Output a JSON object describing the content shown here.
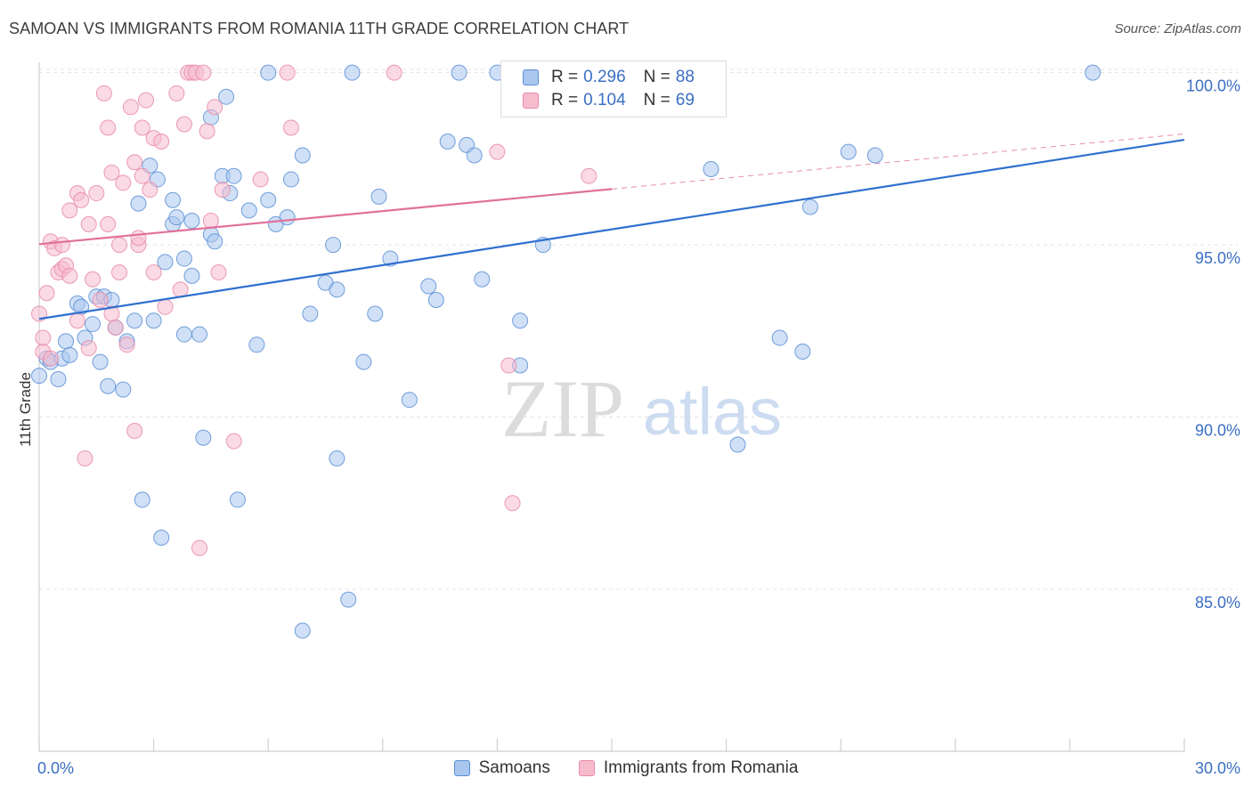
{
  "header": {
    "title": "SAMOAN VS IMMIGRANTS FROM ROMANIA 11TH GRADE CORRELATION CHART",
    "source": "Source: ZipAtlas.com"
  },
  "watermark": {
    "zip": "ZIP",
    "atlas": "atlas"
  },
  "legend_top": [
    {
      "r_label": "R =",
      "r_value": "0.296",
      "n_label": "N =",
      "n_value": "88"
    },
    {
      "r_label": "R =",
      "r_value": "0.104",
      "n_label": "N =",
      "n_value": "69"
    }
  ],
  "legend_bottom": [
    "Samoans",
    "Immigrants from Romania"
  ],
  "colors": {
    "blue_fill": "#a9c6ef",
    "blue_stroke": "#5b8fd6",
    "blue_line": "#2f6fcf",
    "pink_fill": "#f6bccd",
    "pink_stroke": "#e889a8",
    "pink_line": "#e0719a",
    "grid": "#e4e4e4",
    "tick_label": "#3b6fc4"
  },
  "chart_data": {
    "type": "scatter",
    "title": "SAMOAN VS IMMIGRANTS FROM ROMANIA 11TH GRADE CORRELATION CHART",
    "xlabel": "",
    "ylabel": "11th Grade",
    "xlim": [
      0,
      30
    ],
    "ylim": [
      80.4,
      100.3
    ],
    "x_tick_labels": [
      "0.0%",
      "30.0%"
    ],
    "y_ticks": [
      85,
      90,
      95,
      100
    ],
    "y_tick_labels": [
      "85.0%",
      "90.0%",
      "95.0%",
      "100.0%"
    ],
    "grid": true,
    "series": [
      {
        "name": "Samoans",
        "r": 0.296,
        "n": 88,
        "trend": {
          "x": [
            0,
            30
          ],
          "y": [
            92.85,
            98.05
          ]
        },
        "points": [
          [
            0.0,
            91.2
          ],
          [
            0.2,
            91.7
          ],
          [
            0.3,
            91.6
          ],
          [
            0.5,
            91.1
          ],
          [
            0.6,
            91.7
          ],
          [
            0.7,
            92.2
          ],
          [
            0.8,
            91.8
          ],
          [
            1.0,
            93.3
          ],
          [
            1.1,
            93.2
          ],
          [
            1.2,
            92.3
          ],
          [
            1.4,
            92.7
          ],
          [
            1.5,
            93.5
          ],
          [
            1.6,
            91.6
          ],
          [
            1.7,
            93.5
          ],
          [
            1.8,
            90.9
          ],
          [
            1.9,
            93.4
          ],
          [
            2.0,
            92.6
          ],
          [
            2.2,
            90.8
          ],
          [
            2.3,
            92.2
          ],
          [
            2.5,
            92.8
          ],
          [
            2.6,
            96.2
          ],
          [
            2.7,
            87.6
          ],
          [
            2.9,
            97.3
          ],
          [
            3.0,
            92.8
          ],
          [
            3.1,
            96.9
          ],
          [
            3.2,
            86.5
          ],
          [
            3.3,
            94.5
          ],
          [
            3.5,
            96.3
          ],
          [
            3.5,
            95.6
          ],
          [
            3.6,
            95.8
          ],
          [
            3.8,
            94.6
          ],
          [
            3.8,
            92.4
          ],
          [
            4.0,
            95.7
          ],
          [
            4.0,
            94.1
          ],
          [
            4.2,
            92.4
          ],
          [
            4.3,
            89.4
          ],
          [
            4.5,
            95.3
          ],
          [
            4.5,
            98.7
          ],
          [
            4.6,
            95.1
          ],
          [
            4.8,
            97.0
          ],
          [
            4.9,
            99.3
          ],
          [
            5.0,
            96.5
          ],
          [
            5.1,
            97.0
          ],
          [
            5.2,
            87.6
          ],
          [
            5.5,
            96.0
          ],
          [
            5.7,
            92.1
          ],
          [
            6.0,
            96.3
          ],
          [
            6.0,
            100.0
          ],
          [
            6.2,
            95.6
          ],
          [
            6.5,
            95.8
          ],
          [
            6.6,
            96.9
          ],
          [
            6.9,
            97.6
          ],
          [
            6.9,
            83.8
          ],
          [
            7.1,
            93.0
          ],
          [
            7.5,
            93.9
          ],
          [
            7.7,
            95.0
          ],
          [
            7.8,
            93.7
          ],
          [
            7.8,
            88.8
          ],
          [
            8.1,
            84.7
          ],
          [
            8.2,
            100.0
          ],
          [
            8.5,
            91.6
          ],
          [
            8.8,
            93.0
          ],
          [
            8.9,
            96.4
          ],
          [
            9.2,
            94.6
          ],
          [
            9.7,
            90.5
          ],
          [
            10.2,
            93.8
          ],
          [
            10.4,
            93.4
          ],
          [
            10.7,
            98.0
          ],
          [
            11.0,
            100.0
          ],
          [
            11.2,
            97.9
          ],
          [
            11.4,
            97.6
          ],
          [
            11.6,
            94.0
          ],
          [
            12.0,
            100.0
          ],
          [
            12.6,
            92.8
          ],
          [
            12.6,
            91.5
          ],
          [
            13.2,
            95.0
          ],
          [
            14.1,
            100.0
          ],
          [
            17.6,
            97.2
          ],
          [
            18.3,
            89.2
          ],
          [
            19.4,
            92.3
          ],
          [
            20.0,
            91.9
          ],
          [
            20.2,
            96.1
          ],
          [
            21.2,
            97.7
          ],
          [
            21.9,
            97.6
          ],
          [
            27.6,
            100.0
          ]
        ]
      },
      {
        "name": "Immigrants from Romania",
        "r": 0.104,
        "n": 69,
        "trend": {
          "x": [
            0,
            15
          ],
          "y": [
            95.02,
            96.62
          ]
        },
        "trend_dashed": {
          "x": [
            15,
            30
          ],
          "y": [
            96.62,
            98.22
          ]
        },
        "points": [
          [
            0.0,
            93.0
          ],
          [
            0.1,
            91.9
          ],
          [
            0.1,
            92.3
          ],
          [
            0.2,
            93.6
          ],
          [
            0.3,
            91.7
          ],
          [
            0.3,
            95.1
          ],
          [
            0.4,
            94.9
          ],
          [
            0.5,
            94.2
          ],
          [
            0.6,
            94.3
          ],
          [
            0.6,
            95.0
          ],
          [
            0.7,
            94.4
          ],
          [
            0.8,
            96.0
          ],
          [
            0.8,
            94.1
          ],
          [
            1.0,
            96.5
          ],
          [
            1.0,
            92.8
          ],
          [
            1.1,
            96.3
          ],
          [
            1.2,
            88.8
          ],
          [
            1.3,
            95.6
          ],
          [
            1.3,
            92.0
          ],
          [
            1.4,
            94.0
          ],
          [
            1.5,
            96.5
          ],
          [
            1.6,
            93.4
          ],
          [
            1.7,
            99.4
          ],
          [
            1.8,
            98.4
          ],
          [
            1.8,
            95.6
          ],
          [
            1.9,
            97.1
          ],
          [
            1.9,
            93.0
          ],
          [
            2.0,
            92.6
          ],
          [
            2.1,
            95.0
          ],
          [
            2.1,
            94.2
          ],
          [
            2.2,
            96.8
          ],
          [
            2.3,
            92.1
          ],
          [
            2.4,
            99.0
          ],
          [
            2.5,
            97.4
          ],
          [
            2.5,
            89.6
          ],
          [
            2.6,
            95.0
          ],
          [
            2.6,
            95.2
          ],
          [
            2.7,
            98.4
          ],
          [
            2.7,
            97.0
          ],
          [
            2.8,
            99.2
          ],
          [
            2.9,
            96.6
          ],
          [
            3.0,
            98.1
          ],
          [
            3.0,
            94.2
          ],
          [
            3.2,
            98.0
          ],
          [
            3.3,
            93.2
          ],
          [
            3.6,
            99.4
          ],
          [
            3.7,
            93.7
          ],
          [
            3.8,
            98.5
          ],
          [
            3.9,
            100.0
          ],
          [
            4.0,
            100.0
          ],
          [
            4.1,
            100.0
          ],
          [
            4.2,
            86.2
          ],
          [
            4.3,
            100.0
          ],
          [
            4.4,
            98.3
          ],
          [
            4.5,
            95.7
          ],
          [
            4.6,
            99.0
          ],
          [
            4.7,
            94.2
          ],
          [
            4.8,
            96.6
          ],
          [
            5.1,
            89.3
          ],
          [
            5.8,
            96.9
          ],
          [
            6.5,
            100.0
          ],
          [
            6.6,
            98.4
          ],
          [
            9.3,
            100.0
          ],
          [
            12.0,
            97.7
          ],
          [
            12.3,
            91.5
          ],
          [
            12.4,
            87.5
          ],
          [
            14.4,
            97.0
          ]
        ]
      }
    ]
  }
}
